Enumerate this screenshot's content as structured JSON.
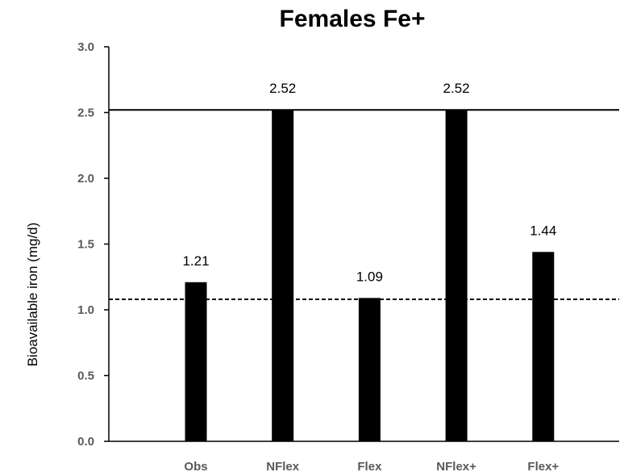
{
  "chart_data": {
    "type": "bar",
    "title": "Females Fe+",
    "xlabel": "",
    "ylabel": "Bioavailable iron (mg/d)",
    "categories": [
      "Obs",
      "NFlex",
      "Flex",
      "NFlex+",
      "Flex+"
    ],
    "values": [
      1.21,
      2.52,
      1.09,
      2.52,
      1.44
    ],
    "data_labels": [
      "1.21",
      "2.52",
      "1.09",
      "2.52",
      "1.44"
    ],
    "ylim": [
      0,
      3.0
    ],
    "yticks": [
      "0.0",
      "0.5",
      "1.0",
      "1.5",
      "2.0",
      "2.5",
      "3.0"
    ],
    "reference_lines": [
      {
        "style": "solid",
        "value": 2.52
      },
      {
        "style": "dashed",
        "value": 1.08
      }
    ],
    "grid": false,
    "legend": "none",
    "bar_color": "#000000"
  }
}
